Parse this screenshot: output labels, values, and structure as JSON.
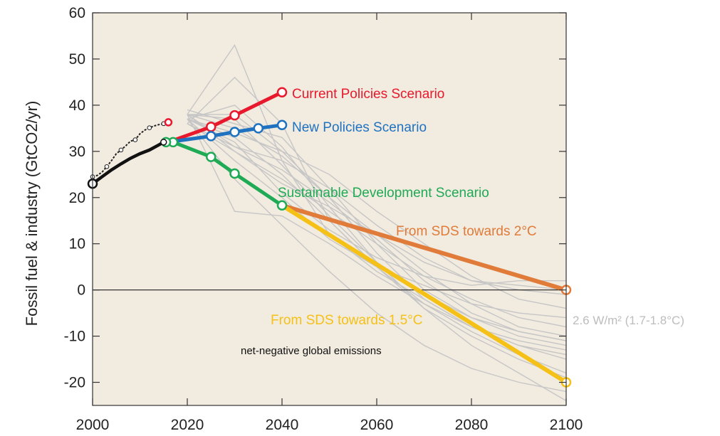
{
  "chart_data": {
    "type": "line",
    "title": "",
    "ylabel": "Fossil fuel & industry (GtCO2/yr)",
    "xlabel": "",
    "xlim": [
      2000,
      2100
    ],
    "ylim": [
      -25,
      60
    ],
    "xticks": [
      2000,
      2020,
      2040,
      2060,
      2080,
      2100
    ],
    "yticks": [
      60,
      50,
      40,
      30,
      20,
      10,
      0,
      -10,
      -20
    ],
    "colors": {
      "background": "#f2ebe0",
      "grey": "#c6c6c6",
      "historical_black": "#111111",
      "current": "#e8192c",
      "new": "#1f72c0",
      "sds": "#1faa55",
      "sds2": "#e07b39",
      "sds15": "#f5c116"
    },
    "series": [
      {
        "name": "Current Policies Scenario",
        "color": "#e8192c",
        "x": [
          2016,
          2025,
          2030,
          2040
        ],
        "y": [
          32,
          35.3,
          37.8,
          42.8
        ]
      },
      {
        "name": "New Policies Scenario",
        "color": "#1f72c0",
        "x": [
          2016,
          2025,
          2030,
          2035,
          2040
        ],
        "y": [
          32,
          33.3,
          34.2,
          35,
          35.7
        ]
      },
      {
        "name": "Sustainable Development Scenario",
        "color": "#1faa55",
        "x": [
          2016,
          2017,
          2025,
          2030,
          2040
        ],
        "y": [
          32,
          32,
          28.8,
          25.2,
          18.3
        ]
      },
      {
        "name": "From SDS towards 2°C",
        "color": "#e07b39",
        "x": [
          2040,
          2100
        ],
        "y": [
          18.3,
          0
        ]
      },
      {
        "name": "From SDS towards 1.5°C",
        "color": "#f5c116",
        "x": [
          2040,
          2100
        ],
        "y": [
          18.3,
          -20
        ]
      }
    ],
    "historical_lower": {
      "x": [
        2000,
        2002,
        2004,
        2006,
        2008,
        2010,
        2012,
        2014,
        2015
      ],
      "y": [
        23,
        24.5,
        26,
        27.3,
        28.5,
        29.5,
        30.3,
        31.4,
        32
      ]
    },
    "historical_upper": {
      "x": [
        2000,
        2001,
        2002,
        2003,
        2004,
        2005,
        2006,
        2007,
        2008,
        2009,
        2010,
        2011,
        2012,
        2013,
        2014,
        2015,
        2016
      ],
      "y": [
        24.5,
        24.8,
        25.5,
        26.7,
        28,
        29.5,
        30.3,
        31.2,
        32.2,
        32.5,
        33.8,
        34.6,
        35.1,
        35.5,
        35.8,
        36,
        36.3
      ]
    },
    "grey_scenarios": [
      {
        "x": [
          2020,
          2030,
          2040,
          2050,
          2060,
          2070,
          2080,
          2090,
          2100
        ],
        "y": [
          38,
          53,
          28,
          12,
          4,
          -2,
          -8,
          -12,
          -14
        ]
      },
      {
        "x": [
          2020,
          2030,
          2040,
          2050,
          2060,
          2070,
          2080,
          2090,
          2100
        ],
        "y": [
          36,
          46,
          36,
          15,
          5,
          -3,
          -9,
          -14,
          -18
        ]
      },
      {
        "x": [
          2020,
          2030,
          2040,
          2050,
          2060,
          2070,
          2080,
          2090,
          2100
        ],
        "y": [
          37,
          34,
          30,
          25,
          17,
          10,
          3,
          -2,
          -4
        ]
      },
      {
        "x": [
          2020,
          2030,
          2040,
          2050,
          2060,
          2070,
          2080,
          2090,
          2100
        ],
        "y": [
          38,
          30,
          23,
          18,
          12,
          6,
          2,
          1,
          0
        ]
      },
      {
        "x": [
          2020,
          2030,
          2040,
          2050,
          2060,
          2070,
          2080,
          2090,
          2100
        ],
        "y": [
          39,
          36,
          33,
          22,
          10,
          0,
          -6,
          -10,
          -12
        ]
      },
      {
        "x": [
          2020,
          2030,
          2040,
          2050,
          2060,
          2070,
          2080,
          2090,
          2100
        ],
        "y": [
          38,
          17,
          16,
          10,
          3,
          -3,
          -8,
          -11,
          -13
        ]
      },
      {
        "x": [
          2020,
          2030,
          2040,
          2050,
          2060,
          2070,
          2080,
          2090,
          2100
        ],
        "y": [
          37,
          24,
          14,
          4,
          -5,
          -12,
          -17,
          -20,
          -22
        ]
      },
      {
        "x": [
          2020,
          2030,
          2040,
          2050,
          2060,
          2070,
          2080,
          2090,
          2100
        ],
        "y": [
          37,
          33,
          25,
          15,
          5,
          -4,
          -12,
          -18,
          -24
        ]
      },
      {
        "x": [
          2020,
          2030,
          2040,
          2050,
          2060,
          2070,
          2080,
          2090,
          2100
        ],
        "y": [
          38,
          38,
          30,
          20,
          12,
          4,
          -3,
          -8,
          -10
        ]
      },
      {
        "x": [
          2020,
          2030,
          2040,
          2050,
          2060,
          2070,
          2080,
          2090,
          2100
        ],
        "y": [
          37,
          28,
          20,
          11,
          5,
          1,
          -3,
          -5,
          -6
        ]
      },
      {
        "x": [
          2020,
          2030,
          2040,
          2050,
          2060,
          2070,
          2080,
          2090,
          2100
        ],
        "y": [
          36,
          31,
          26,
          19,
          11,
          2,
          -5,
          -9,
          -11
        ]
      },
      {
        "x": [
          2020,
          2030,
          2040,
          2050,
          2060,
          2070,
          2080,
          2090,
          2100
        ],
        "y": [
          38,
          35,
          29,
          20,
          8,
          -2,
          -8,
          -12,
          -15
        ]
      },
      {
        "x": [
          2020,
          2030,
          2040,
          2050,
          2060,
          2070,
          2080,
          2090,
          2100
        ],
        "y": [
          37,
          32,
          21,
          13,
          7,
          3,
          1,
          2,
          2
        ]
      },
      {
        "x": [
          2020,
          2030,
          2040,
          2050,
          2060,
          2070,
          2080,
          2090,
          2100
        ],
        "y": [
          38,
          37,
          27,
          16,
          6,
          -1,
          -6,
          -9,
          -11
        ]
      },
      {
        "x": [
          2020,
          2030,
          2040,
          2050,
          2060,
          2070,
          2080,
          2090,
          2100
        ],
        "y": [
          36,
          30,
          24,
          17,
          10,
          3,
          -2,
          -6,
          -8
        ]
      },
      {
        "x": [
          2020,
          2030,
          2040,
          2050,
          2060,
          2070,
          2080,
          2090,
          2100
        ],
        "y": [
          37,
          40,
          31,
          18,
          6,
          -4,
          -10,
          -15,
          -19
        ]
      },
      {
        "x": [
          2020,
          2030,
          2040,
          2050,
          2060,
          2070,
          2080,
          2090,
          2100
        ],
        "y": [
          38,
          31,
          28,
          22,
          14,
          7,
          2,
          0,
          -1
        ]
      }
    ],
    "annotations": {
      "current": "Current Policies Scenario",
      "new": "New Policies Scenario",
      "sds": "Sustainable Development Scenario",
      "sds2": "From SDS towards 2°C",
      "sds15": "From SDS towards 1.5°C",
      "rcp": "2.6 W/m² (1.7-1.8°C)",
      "negative": "net-negative global emissions"
    },
    "grid": false
  }
}
